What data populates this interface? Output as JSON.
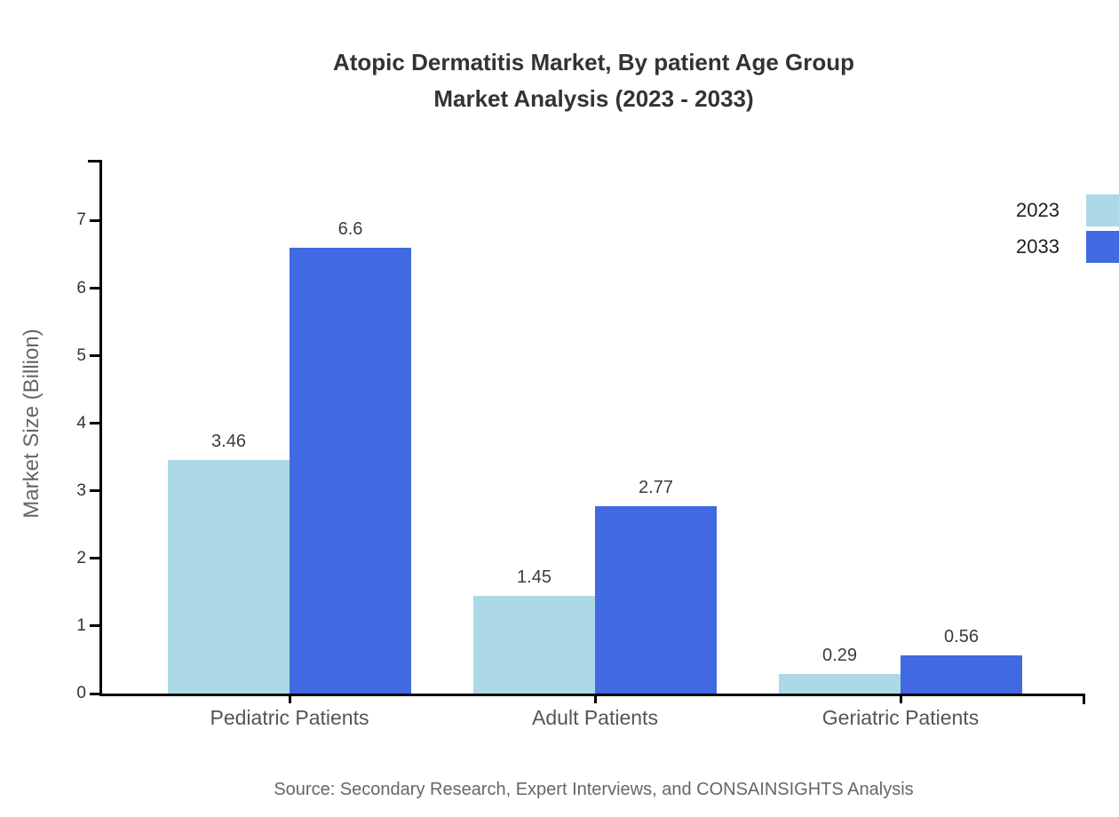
{
  "title": {
    "line1": "Atopic Dermatitis Market, By patient Age Group",
    "line2": "Market Analysis (2023 - 2033)"
  },
  "y_axis": {
    "label": "Market Size (Billion)",
    "ticks": [
      "0",
      "1",
      "2",
      "3",
      "4",
      "5",
      "6",
      "7"
    ]
  },
  "x_axis": {
    "categories": [
      "Pediatric Patients",
      "Adult Patients",
      "Geriatric Patients"
    ]
  },
  "legend": {
    "items": [
      {
        "label": "2023",
        "color": "#ADD8E6"
      },
      {
        "label": "2033",
        "color": "#4169E1"
      }
    ]
  },
  "source": "Source: Secondary Research, Expert Interviews, and CONSAINSIGHTS Analysis",
  "colors": {
    "series_2023": "#ADD8E6",
    "series_2033": "#4169E1",
    "axis": "#000000",
    "title_text": "#333333",
    "muted_text": "#666666"
  },
  "chart_data": {
    "type": "bar",
    "title": "Atopic Dermatitis Market, By patient Age Group Market Analysis (2023 - 2033)",
    "categories": [
      "Pediatric Patients",
      "Adult Patients",
      "Geriatric Patients"
    ],
    "series": [
      {
        "name": "2023",
        "color": "#ADD8E6",
        "values": [
          3.46,
          1.45,
          0.29
        ]
      },
      {
        "name": "2033",
        "color": "#4169E1",
        "values": [
          6.6,
          2.77,
          0.56
        ]
      }
    ],
    "xlabel": "",
    "ylabel": "Market Size (Billion)",
    "ylim": [
      0,
      7.9
    ],
    "yticks": [
      0,
      1,
      2,
      3,
      4,
      5,
      6,
      7
    ],
    "grid": false,
    "legend_position": "top-right",
    "value_labels": true
  }
}
